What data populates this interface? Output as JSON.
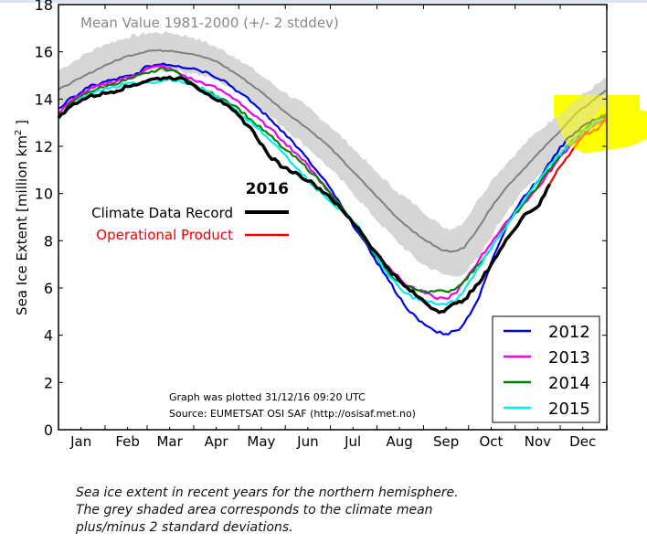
{
  "chart_data": {
    "type": "line",
    "ylabel": "Sea Ice Extent [million km²]",
    "ylabel_main": "Sea Ice Extent [million km",
    "ylabel_sup": "2",
    "ylabel_tail": " ]",
    "ylim": [
      0,
      18
    ],
    "xlim_days": [
      0,
      365
    ],
    "yticks": [
      "0",
      "2",
      "4",
      "6",
      "8",
      "10",
      "12",
      "14",
      "16",
      "18"
    ],
    "ytick_values": [
      0,
      2,
      4,
      6,
      8,
      10,
      12,
      14,
      16,
      18
    ],
    "months": [
      "Jan",
      "Feb",
      "Mar",
      "Apr",
      "May",
      "Jun",
      "Jul",
      "Aug",
      "Sep",
      "Oct",
      "Nov",
      "Dec"
    ],
    "month_label_days": [
      15,
      46,
      74,
      105,
      135,
      166,
      196,
      227,
      258,
      288,
      319,
      349
    ],
    "grid": false,
    "mean_label": "Mean Value 1981-2000 (+/- 2 stddev)",
    "mean": {
      "name": "Mean 1981-2000",
      "color": "#808080",
      "band_color": "#d6d6d6",
      "days": [
        0,
        15,
        30,
        45,
        60,
        75,
        90,
        105,
        120,
        135,
        150,
        165,
        180,
        195,
        210,
        225,
        240,
        255,
        262,
        270,
        280,
        290,
        300,
        315,
        330,
        345,
        365
      ],
      "values": [
        14.4,
        14.9,
        15.4,
        15.8,
        16.05,
        16.05,
        15.9,
        15.6,
        15.0,
        14.3,
        13.5,
        12.8,
        12.0,
        11.0,
        10.0,
        9.0,
        8.2,
        7.6,
        7.55,
        7.7,
        8.6,
        9.6,
        10.4,
        11.4,
        12.4,
        13.4,
        14.4
      ],
      "upper": [
        15.2,
        15.8,
        16.3,
        16.6,
        16.8,
        16.8,
        16.6,
        16.2,
        15.7,
        15.0,
        14.3,
        13.7,
        12.9,
        12.0,
        11.0,
        10.1,
        9.4,
        8.6,
        8.5,
        8.8,
        9.8,
        10.7,
        11.4,
        12.4,
        13.2,
        14.0,
        14.9
      ],
      "lower": [
        13.7,
        14.1,
        14.5,
        14.9,
        15.2,
        15.2,
        15.1,
        14.8,
        14.3,
        13.6,
        12.8,
        12.0,
        11.1,
        10.1,
        9.0,
        8.0,
        7.1,
        6.6,
        6.5,
        6.6,
        7.3,
        8.4,
        9.4,
        10.5,
        11.5,
        12.6,
        13.8
      ]
    },
    "series": [
      {
        "name": "2012",
        "color": "#0000dd",
        "days": [
          0,
          10,
          20,
          35,
          50,
          60,
          70,
          80,
          90,
          100,
          110,
          120,
          130,
          140,
          150,
          160,
          170,
          180,
          190,
          200,
          210,
          220,
          230,
          240,
          250,
          258,
          265,
          270,
          280,
          290,
          300,
          310,
          320,
          330,
          340,
          350,
          360,
          365
        ],
        "values": [
          13.6,
          14.1,
          14.5,
          14.8,
          15.0,
          15.4,
          15.5,
          15.4,
          15.3,
          15.1,
          14.8,
          14.3,
          13.8,
          13.2,
          12.6,
          11.9,
          11.1,
          10.3,
          9.3,
          8.3,
          7.3,
          6.3,
          5.3,
          4.6,
          4.2,
          4.05,
          4.2,
          4.5,
          5.6,
          7.4,
          8.9,
          9.9,
          10.6,
          11.6,
          12.4,
          12.9,
          13.2,
          13.3
        ]
      },
      {
        "name": "2013",
        "color": "#ee00ee",
        "days": [
          0,
          10,
          20,
          35,
          50,
          60,
          70,
          80,
          90,
          100,
          110,
          120,
          130,
          140,
          150,
          160,
          170,
          180,
          190,
          200,
          210,
          220,
          230,
          240,
          250,
          258,
          265,
          270,
          280,
          290,
          300,
          310,
          320,
          330,
          340,
          350,
          360,
          365
        ],
        "values": [
          13.4,
          14.0,
          14.4,
          14.7,
          15.0,
          15.3,
          15.4,
          15.1,
          14.8,
          14.6,
          14.3,
          13.9,
          13.3,
          12.8,
          12.2,
          11.6,
          10.9,
          10.1,
          9.3,
          8.4,
          7.6,
          6.9,
          6.2,
          5.9,
          5.6,
          5.55,
          5.8,
          6.3,
          7.2,
          8.1,
          8.9,
          9.6,
          10.3,
          11.2,
          12.0,
          12.6,
          13.0,
          13.1
        ]
      },
      {
        "name": "2014",
        "color": "#008000",
        "days": [
          0,
          10,
          20,
          35,
          50,
          60,
          70,
          80,
          90,
          100,
          110,
          120,
          130,
          140,
          150,
          160,
          170,
          180,
          190,
          200,
          210,
          220,
          230,
          240,
          250,
          258,
          265,
          270,
          280,
          290,
          300,
          310,
          320,
          330,
          340,
          350,
          360,
          365
        ],
        "values": [
          13.3,
          13.9,
          14.3,
          14.6,
          14.9,
          15.1,
          15.3,
          15.1,
          14.6,
          14.3,
          14.0,
          13.6,
          13.0,
          12.5,
          11.9,
          11.4,
          10.8,
          10.1,
          9.3,
          8.4,
          7.4,
          6.6,
          6.1,
          5.9,
          5.85,
          5.85,
          6.0,
          6.3,
          7.0,
          7.9,
          8.8,
          9.6,
          10.4,
          11.3,
          12.1,
          12.7,
          13.2,
          13.4
        ]
      },
      {
        "name": "2015",
        "color": "#00eeee",
        "days": [
          0,
          10,
          20,
          35,
          50,
          60,
          70,
          80,
          90,
          100,
          110,
          120,
          130,
          140,
          150,
          160,
          170,
          180,
          190,
          200,
          210,
          220,
          230,
          240,
          250,
          258,
          265,
          270,
          280,
          290,
          300,
          310,
          320,
          330,
          340,
          350,
          360,
          365
        ],
        "values": [
          13.2,
          13.8,
          14.2,
          14.5,
          14.7,
          14.7,
          14.8,
          14.8,
          14.6,
          14.3,
          13.9,
          13.4,
          12.9,
          12.3,
          11.7,
          11.0,
          10.3,
          9.7,
          9.2,
          8.6,
          7.5,
          6.5,
          5.8,
          5.5,
          5.35,
          5.3,
          5.5,
          5.9,
          6.9,
          7.9,
          8.8,
          9.7,
          10.6,
          11.4,
          12.1,
          12.7,
          13.1,
          13.3
        ]
      },
      {
        "name": "2016 Climate Data Record",
        "color": "#000000",
        "days": [
          0,
          10,
          20,
          35,
          50,
          60,
          70,
          80,
          90,
          100,
          110,
          120,
          130,
          140,
          150,
          160,
          170,
          180,
          190,
          200,
          210,
          220,
          230,
          240,
          250,
          255,
          260,
          265,
          270,
          280,
          290,
          300,
          310,
          320,
          327
        ],
        "values": [
          13.2,
          13.8,
          14.1,
          14.3,
          14.6,
          14.8,
          14.9,
          14.9,
          14.6,
          14.2,
          13.8,
          13.3,
          12.6,
          11.6,
          11.1,
          10.8,
          10.4,
          9.9,
          9.2,
          8.5,
          7.6,
          6.8,
          6.1,
          5.6,
          5.1,
          5.0,
          5.2,
          5.35,
          5.5,
          6.2,
          7.2,
          8.2,
          9.1,
          9.5,
          10.4
        ]
      },
      {
        "name": "2016 Operational Product",
        "color": "#ee0000",
        "days": [
          327,
          332,
          338,
          344,
          350,
          355,
          360,
          365
        ],
        "values": [
          10.4,
          11.0,
          11.5,
          12.0,
          12.5,
          12.6,
          12.8,
          13.3
        ]
      }
    ],
    "legend_2016": {
      "title": "2016",
      "entries": [
        {
          "label": "Climate Data Record",
          "color": "#000000"
        },
        {
          "label": "Operational Product",
          "color": "#ee0000"
        }
      ]
    },
    "legend_years": {
      "placement": "lower-right",
      "entries": [
        {
          "label": "2012",
          "color": "#0000dd"
        },
        {
          "label": "2013",
          "color": "#ee00ee"
        },
        {
          "label": "2014",
          "color": "#008000"
        },
        {
          "label": "2015",
          "color": "#00eeee"
        }
      ]
    },
    "annotations": [
      "Graph was plotted 31/12/16 09:20 UTC",
      "Source: EUMETSAT OSI SAF (http://osisaf.met.no)"
    ],
    "highlight": {
      "label": "yellow highlight over December end-of-year values",
      "color": "#ffff00"
    }
  },
  "caption": {
    "lines": [
      "Sea ice extent in recent years for the northern hemisphere.",
      "The grey shaded area corresponds to the climate mean",
      "plus/minus 2 standard deviations."
    ]
  }
}
